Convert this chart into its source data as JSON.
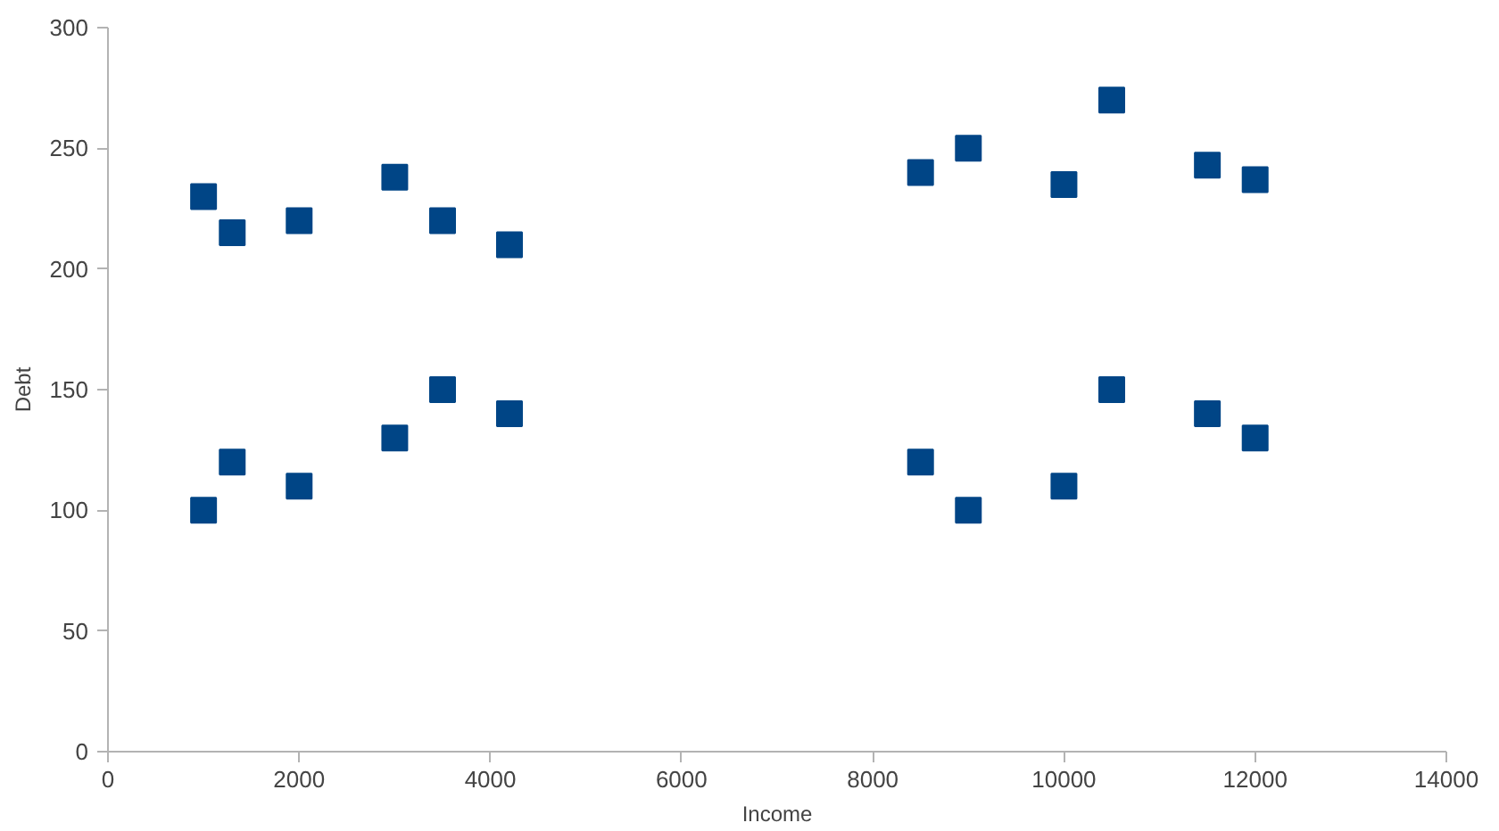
{
  "chart_data": {
    "type": "scatter",
    "xlabel": "Income",
    "ylabel": "Debt",
    "x": [
      1000,
      1300,
      2000,
      3000,
      3500,
      4200,
      8500,
      9000,
      10000,
      10500,
      11500,
      12000,
      1000,
      1300,
      2000,
      3000,
      3500,
      4200,
      8500,
      9000,
      10000,
      10500,
      11500,
      12000
    ],
    "series": [
      {
        "color": "#004586",
        "values": [
          230,
          215,
          220,
          238,
          220,
          210,
          240,
          250,
          235,
          270,
          243,
          237,
          100,
          120,
          110,
          130,
          150,
          140,
          120,
          100,
          110,
          150,
          140,
          130
        ]
      }
    ],
    "xlim": [
      0,
      14000
    ],
    "ylim": [
      0,
      300
    ],
    "xticks": [
      0,
      2000,
      4000,
      6000,
      8000,
      10000,
      12000,
      14000
    ],
    "yticks": [
      0,
      50,
      100,
      150,
      200,
      250,
      300
    ],
    "marker": "square"
  }
}
